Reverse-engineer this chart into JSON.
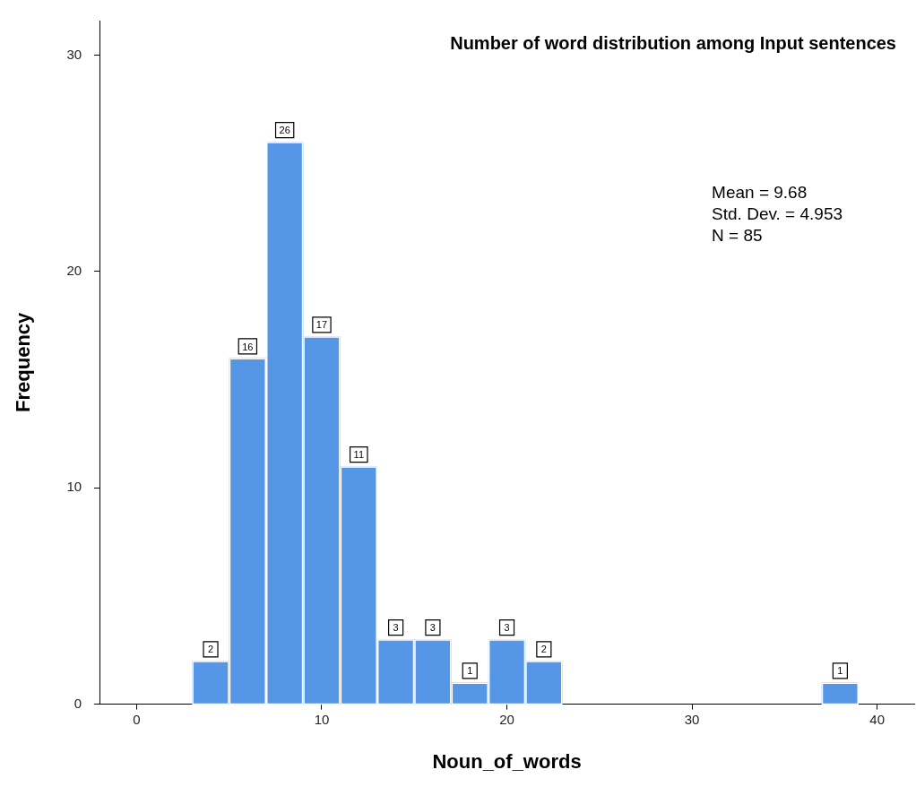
{
  "chart_data": {
    "type": "histogram",
    "title": "Number of word distribution among Input sentences",
    "xlabel": "Noun_of_words",
    "ylabel": "Frequency",
    "bins": [
      3,
      5,
      7,
      9,
      11,
      13,
      15,
      17,
      19,
      21,
      23,
      25,
      27,
      29,
      31,
      33,
      35,
      37,
      39
    ],
    "values": [
      2,
      16,
      26,
      17,
      11,
      3,
      3,
      1,
      3,
      2,
      0,
      0,
      0,
      0,
      0,
      0,
      0,
      1
    ],
    "value_labels": [
      "2",
      "16",
      "26",
      "17",
      "11",
      "3",
      "3",
      "1",
      "3",
      "2",
      null,
      null,
      null,
      null,
      null,
      null,
      null,
      "1"
    ],
    "color": "#5596e6",
    "xlim": [
      -2,
      42
    ],
    "xticks": [
      0,
      10,
      20,
      30,
      40
    ],
    "ylim": [
      0,
      31.6
    ],
    "yticks": [
      0,
      10,
      20,
      30
    ],
    "annotations": [
      "Mean = 9.68",
      "Std. Dev. = 4.953",
      "N = 85"
    ],
    "legend": false
  }
}
